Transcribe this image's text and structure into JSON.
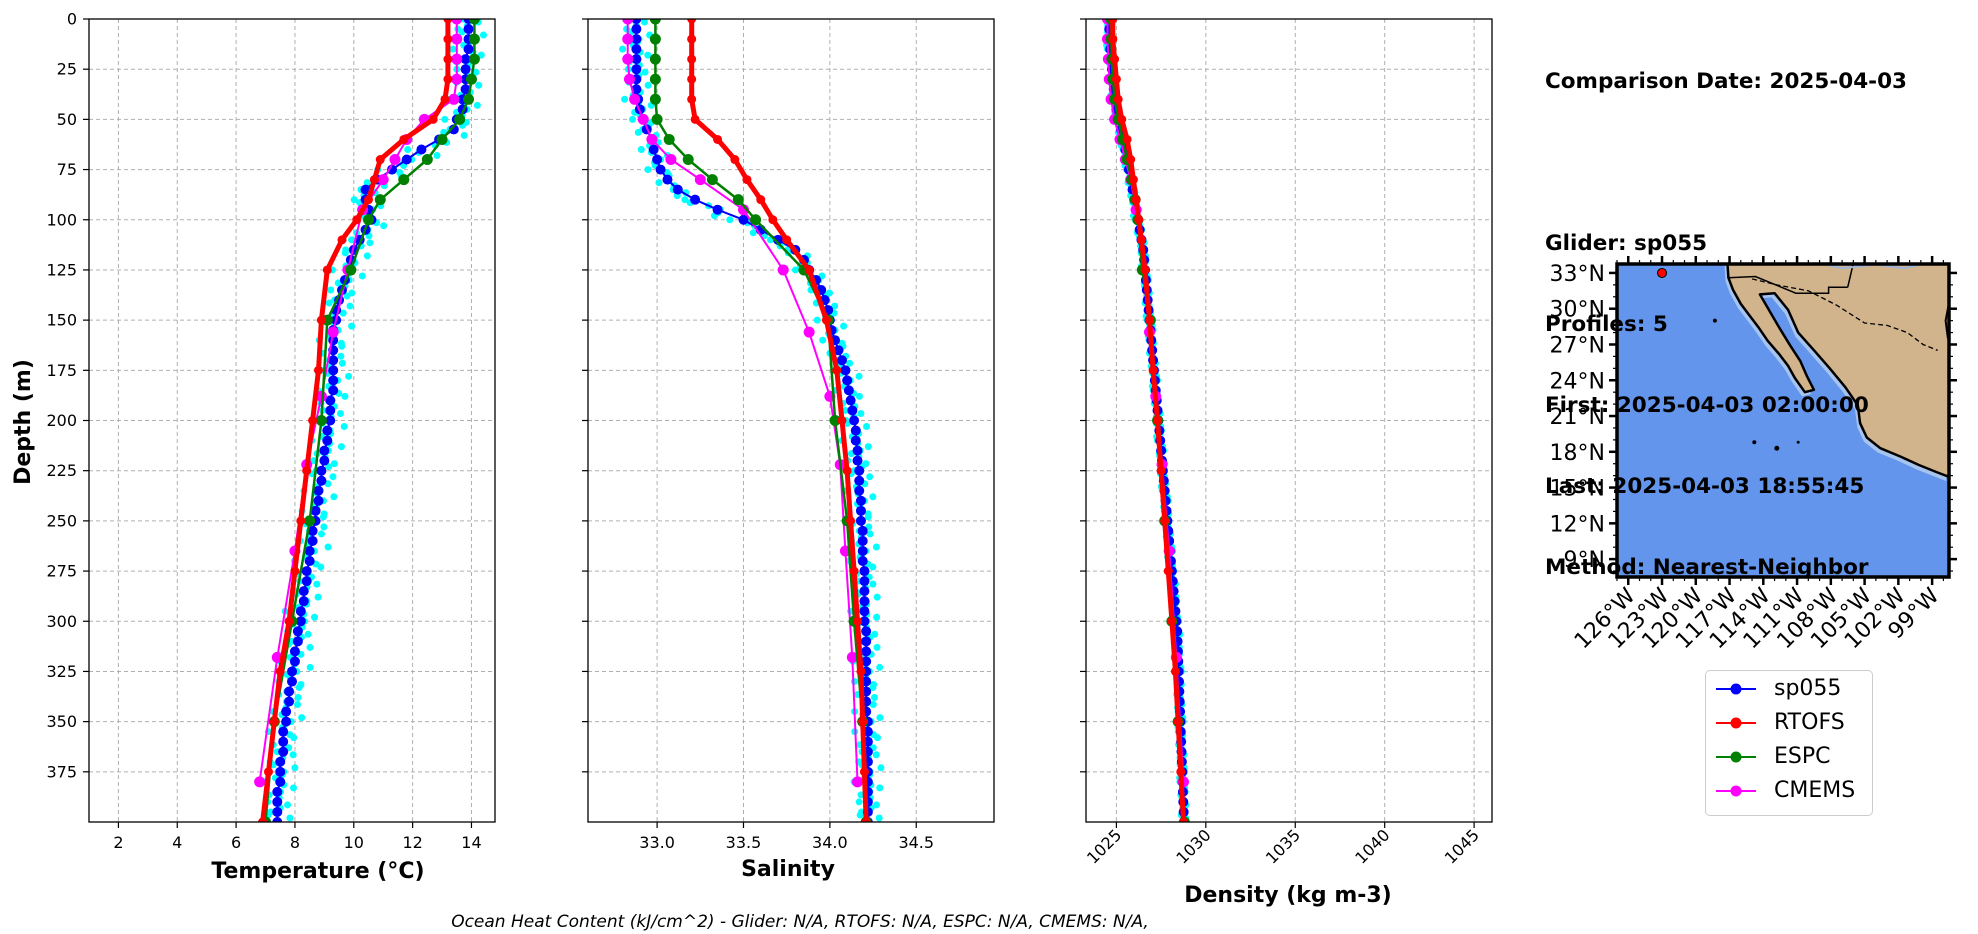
{
  "header": {
    "date_line": "Comparison Date: 2025-04-03",
    "glider_line": "Glider: sp055",
    "profiles_line": "Profiles: 5",
    "first_line": "First: 2025-04-03 02:00:00",
    "last_line": "Last: 2025-04-03 18:55:45",
    "method_line": "Method: Nearest-Neighbor"
  },
  "footer": "Ocean Heat Content (kJ/cm^2) - Glider: N/A,  RTOFS: N/A,  ESPC: N/A,  CMEMS: N/A,",
  "legend": [
    {
      "label": "sp055",
      "color": "#0000ff"
    },
    {
      "label": "RTOFS",
      "color": "#ff0000"
    },
    {
      "label": "ESPC",
      "color": "#008000"
    },
    {
      "label": "CMEMS",
      "color": "#ff00ff"
    }
  ],
  "colors": {
    "glider_raw": "#00ffff",
    "ocean": "#6495ed",
    "shallow": "#a6c4ee",
    "land": "#d2b48c"
  },
  "chart_data": [
    {
      "type": "line",
      "xlabel": "Temperature (°C)",
      "ylabel": "Depth (m)",
      "xlim": [
        1,
        14.8
      ],
      "ylim": [
        400,
        0
      ],
      "xticks": [
        2,
        4,
        6,
        8,
        10,
        12,
        14
      ],
      "yticks": [
        0,
        25,
        50,
        75,
        100,
        125,
        150,
        175,
        200,
        225,
        250,
        275,
        300,
        325,
        350,
        375
      ],
      "grid": true,
      "series": [
        {
          "name": "sp055",
          "depth": [
            0,
            5,
            10,
            15,
            20,
            25,
            30,
            35,
            40,
            45,
            50,
            55,
            60,
            65,
            70,
            75,
            80,
            85,
            90,
            95,
            100,
            105,
            110,
            115,
            120,
            125,
            130,
            135,
            140,
            145,
            150,
            155,
            160,
            165,
            170,
            175,
            180,
            185,
            190,
            195,
            200,
            205,
            210,
            215,
            220,
            225,
            230,
            235,
            240,
            245,
            250,
            255,
            260,
            265,
            270,
            275,
            280,
            285,
            290,
            295,
            300,
            305,
            310,
            315,
            320,
            325,
            330,
            335,
            340,
            345,
            350,
            355,
            360,
            365,
            370,
            375,
            380,
            385,
            390,
            395,
            400
          ],
          "values": [
            13.9,
            13.9,
            13.9,
            13.9,
            13.8,
            13.8,
            13.8,
            13.8,
            13.7,
            13.7,
            13.5,
            13.4,
            12.9,
            12.3,
            11.8,
            11.3,
            10.8,
            10.4,
            10.4,
            10.5,
            10.6,
            10.4,
            10.2,
            10.0,
            9.9,
            9.8,
            9.7,
            9.6,
            9.5,
            9.4,
            9.4,
            9.3,
            9.3,
            9.3,
            9.3,
            9.3,
            9.3,
            9.3,
            9.2,
            9.2,
            9.2,
            9.1,
            9.1,
            9.0,
            9.0,
            8.9,
            8.9,
            8.8,
            8.8,
            8.7,
            8.7,
            8.6,
            8.6,
            8.5,
            8.5,
            8.4,
            8.4,
            8.3,
            8.3,
            8.2,
            8.2,
            8.1,
            8.1,
            8.0,
            8.0,
            7.9,
            7.9,
            7.8,
            7.8,
            7.7,
            7.7,
            7.6,
            7.6,
            7.6,
            7.5,
            7.5,
            7.5,
            7.4,
            7.4,
            7.4,
            7.4
          ]
        },
        {
          "name": "RTOFS",
          "depth": [
            0,
            10,
            20,
            30,
            40,
            50,
            60,
            70,
            80,
            90,
            100,
            110,
            125,
            150,
            175,
            200,
            225,
            250,
            275,
            300,
            325,
            350,
            375,
            400
          ],
          "values": [
            13.2,
            13.2,
            13.2,
            13.2,
            13.1,
            12.7,
            11.7,
            10.9,
            10.7,
            10.5,
            10.1,
            9.6,
            9.1,
            8.9,
            8.8,
            8.6,
            8.4,
            8.2,
            8.0,
            7.8,
            7.5,
            7.3,
            7.1,
            6.9
          ]
        },
        {
          "name": "ESPC",
          "depth": [
            0,
            10,
            20,
            30,
            40,
            50,
            60,
            70,
            80,
            90,
            100,
            125,
            150,
            200,
            250,
            300,
            350,
            400
          ],
          "values": [
            14.1,
            14.1,
            14.1,
            14.0,
            13.9,
            13.6,
            13.0,
            12.5,
            11.7,
            10.9,
            10.5,
            9.9,
            9.1,
            8.9,
            8.5,
            7.9,
            7.3,
            7.0
          ]
        },
        {
          "name": "CMEMS",
          "depth": [
            0,
            10,
            20,
            30,
            40,
            50,
            60,
            70,
            80,
            95,
            125,
            156,
            188,
            222,
            265,
            318,
            380
          ],
          "values": [
            13.5,
            13.5,
            13.5,
            13.5,
            13.4,
            12.4,
            11.8,
            11.4,
            11.0,
            10.3,
            9.8,
            9.3,
            8.9,
            8.4,
            8.0,
            7.4,
            6.8
          ]
        }
      ]
    },
    {
      "type": "line",
      "xlabel": "Salinity",
      "xlim": [
        32.6,
        34.95
      ],
      "ylim": [
        400,
        0
      ],
      "xticks": [
        33.0,
        33.5,
        34.0,
        34.5
      ],
      "grid": true,
      "series": [
        {
          "name": "sp055",
          "depth": [
            0,
            5,
            10,
            15,
            20,
            25,
            30,
            35,
            40,
            45,
            50,
            55,
            60,
            65,
            70,
            75,
            80,
            85,
            90,
            95,
            100,
            105,
            110,
            115,
            120,
            125,
            130,
            135,
            140,
            145,
            150,
            155,
            160,
            165,
            170,
            175,
            180,
            185,
            190,
            195,
            200,
            205,
            210,
            215,
            220,
            225,
            230,
            235,
            240,
            245,
            250,
            255,
            260,
            265,
            270,
            275,
            280,
            285,
            290,
            295,
            300,
            305,
            310,
            315,
            320,
            325,
            330,
            335,
            340,
            345,
            350,
            355,
            360,
            365,
            370,
            375,
            380,
            385,
            390,
            395,
            400
          ],
          "values": [
            32.88,
            32.88,
            32.88,
            32.88,
            32.88,
            32.88,
            32.88,
            32.88,
            32.89,
            32.9,
            32.92,
            32.94,
            32.97,
            32.98,
            33.0,
            33.02,
            33.06,
            33.12,
            33.22,
            33.35,
            33.5,
            33.6,
            33.7,
            33.8,
            33.85,
            33.88,
            33.92,
            33.95,
            33.97,
            33.99,
            34.0,
            34.01,
            34.03,
            34.05,
            34.07,
            34.09,
            34.1,
            34.11,
            34.12,
            34.13,
            34.14,
            34.15,
            34.15,
            34.16,
            34.16,
            34.17,
            34.17,
            34.17,
            34.18,
            34.18,
            34.18,
            34.19,
            34.19,
            34.19,
            34.19,
            34.2,
            34.2,
            34.2,
            34.2,
            34.2,
            34.2,
            34.21,
            34.21,
            34.21,
            34.21,
            34.21,
            34.21,
            34.21,
            34.21,
            34.21,
            34.22,
            34.22,
            34.22,
            34.22,
            34.22,
            34.22,
            34.22,
            34.22,
            34.22,
            34.22,
            34.22
          ]
        },
        {
          "name": "RTOFS",
          "depth": [
            0,
            10,
            20,
            30,
            40,
            50,
            60,
            70,
            80,
            90,
            100,
            110,
            125,
            150,
            175,
            200,
            225,
            250,
            275,
            300,
            325,
            350,
            375,
            400
          ],
          "values": [
            33.2,
            33.2,
            33.2,
            33.2,
            33.2,
            33.22,
            33.35,
            33.45,
            33.52,
            33.6,
            33.67,
            33.75,
            33.88,
            33.98,
            34.04,
            34.07,
            34.1,
            34.12,
            34.14,
            34.16,
            34.18,
            34.19,
            34.2,
            34.21
          ]
        },
        {
          "name": "ESPC",
          "depth": [
            0,
            10,
            20,
            30,
            40,
            50,
            60,
            70,
            80,
            90,
            100,
            125,
            150,
            200,
            250,
            300,
            350,
            400
          ],
          "values": [
            32.99,
            32.99,
            32.99,
            32.99,
            32.99,
            33.0,
            33.07,
            33.18,
            33.32,
            33.47,
            33.57,
            33.85,
            33.99,
            34.03,
            34.1,
            34.14,
            34.19,
            34.21
          ]
        },
        {
          "name": "CMEMS",
          "depth": [
            0,
            10,
            20,
            30,
            40,
            50,
            60,
            70,
            80,
            95,
            125,
            156,
            188,
            222,
            265,
            318,
            380
          ],
          "values": [
            32.83,
            32.83,
            32.83,
            32.84,
            32.87,
            32.92,
            32.97,
            33.08,
            33.25,
            33.5,
            33.73,
            33.88,
            34.0,
            34.06,
            34.09,
            34.13,
            34.16
          ]
        }
      ]
    },
    {
      "type": "line",
      "xlabel": "Density (kg m-3)",
      "xlim": [
        1023.3,
        1046.0
      ],
      "ylim": [
        400,
        0
      ],
      "xticks": [
        1025,
        1030,
        1035,
        1040,
        1045
      ],
      "grid": true,
      "series": [
        {
          "name": "sp055",
          "depth": [
            0,
            5,
            10,
            15,
            20,
            25,
            30,
            35,
            40,
            45,
            50,
            55,
            60,
            65,
            70,
            75,
            80,
            85,
            90,
            95,
            100,
            105,
            110,
            115,
            120,
            125,
            130,
            135,
            140,
            145,
            150,
            155,
            160,
            165,
            170,
            175,
            180,
            185,
            190,
            195,
            200,
            205,
            210,
            215,
            220,
            225,
            230,
            235,
            240,
            245,
            250,
            255,
            260,
            265,
            270,
            275,
            280,
            285,
            290,
            295,
            300,
            305,
            310,
            315,
            320,
            325,
            330,
            335,
            340,
            345,
            350,
            355,
            360,
            365,
            370,
            375,
            380,
            385,
            390,
            395,
            400
          ],
          "values": [
            1024.6,
            1024.6,
            1024.6,
            1024.65,
            1024.7,
            1024.75,
            1024.8,
            1024.85,
            1024.9,
            1025.0,
            1025.1,
            1025.25,
            1025.4,
            1025.5,
            1025.6,
            1025.7,
            1025.8,
            1025.9,
            1026.0,
            1026.1,
            1026.2,
            1026.3,
            1026.4,
            1026.5,
            1026.55,
            1026.6,
            1026.65,
            1026.7,
            1026.75,
            1026.8,
            1026.85,
            1026.9,
            1026.95,
            1027.0,
            1027.05,
            1027.1,
            1027.15,
            1027.2,
            1027.25,
            1027.3,
            1027.35,
            1027.4,
            1027.45,
            1027.5,
            1027.55,
            1027.6,
            1027.65,
            1027.7,
            1027.75,
            1027.8,
            1027.85,
            1027.9,
            1027.95,
            1028.0,
            1028.05,
            1028.1,
            1028.15,
            1028.2,
            1028.25,
            1028.3,
            1028.35,
            1028.4,
            1028.42,
            1028.44,
            1028.46,
            1028.48,
            1028.5,
            1028.52,
            1028.54,
            1028.56,
            1028.58,
            1028.6,
            1028.62,
            1028.64,
            1028.66,
            1028.68,
            1028.7,
            1028.72,
            1028.74,
            1028.76,
            1028.78
          ]
        },
        {
          "name": "RTOFS",
          "depth": [
            0,
            10,
            20,
            30,
            40,
            50,
            60,
            70,
            80,
            90,
            100,
            110,
            125,
            150,
            175,
            200,
            225,
            250,
            275,
            300,
            325,
            350,
            375,
            400
          ],
          "values": [
            1024.8,
            1024.8,
            1024.9,
            1025.0,
            1025.1,
            1025.3,
            1025.6,
            1025.8,
            1025.95,
            1026.1,
            1026.25,
            1026.4,
            1026.6,
            1026.85,
            1027.05,
            1027.3,
            1027.5,
            1027.7,
            1027.9,
            1028.1,
            1028.3,
            1028.45,
            1028.6,
            1028.75
          ]
        },
        {
          "name": "ESPC",
          "depth": [
            0,
            10,
            20,
            30,
            40,
            50,
            60,
            70,
            80,
            90,
            100,
            125,
            150,
            200,
            250,
            300,
            350,
            400
          ],
          "values": [
            1024.7,
            1024.7,
            1024.75,
            1024.8,
            1024.9,
            1025.1,
            1025.35,
            1025.6,
            1025.85,
            1026.05,
            1026.2,
            1026.45,
            1026.9,
            1027.3,
            1027.7,
            1028.1,
            1028.45,
            1028.8
          ]
        },
        {
          "name": "CMEMS",
          "depth": [
            0,
            10,
            20,
            30,
            40,
            50,
            60,
            70,
            80,
            95,
            125,
            156,
            188,
            222,
            265,
            318,
            380
          ],
          "values": [
            1024.5,
            1024.5,
            1024.55,
            1024.6,
            1024.7,
            1024.9,
            1025.2,
            1025.5,
            1025.8,
            1026.1,
            1026.5,
            1026.85,
            1027.2,
            1027.55,
            1027.95,
            1028.35,
            1028.75
          ]
        }
      ]
    },
    {
      "type": "map",
      "lat_ticks": [
        "33°N",
        "30°N",
        "27°N",
        "24°N",
        "21°N",
        "18°N",
        "15°N",
        "12°N",
        "9°N"
      ],
      "lon_ticks": [
        "126°W",
        "123°W",
        "120°W",
        "117°W",
        "114°W",
        "111°W",
        "108°W",
        "105°W",
        "102°W",
        "99°W"
      ],
      "glider_position": {
        "lon": -123,
        "lat": 33.0,
        "label": "sp055"
      }
    }
  ]
}
